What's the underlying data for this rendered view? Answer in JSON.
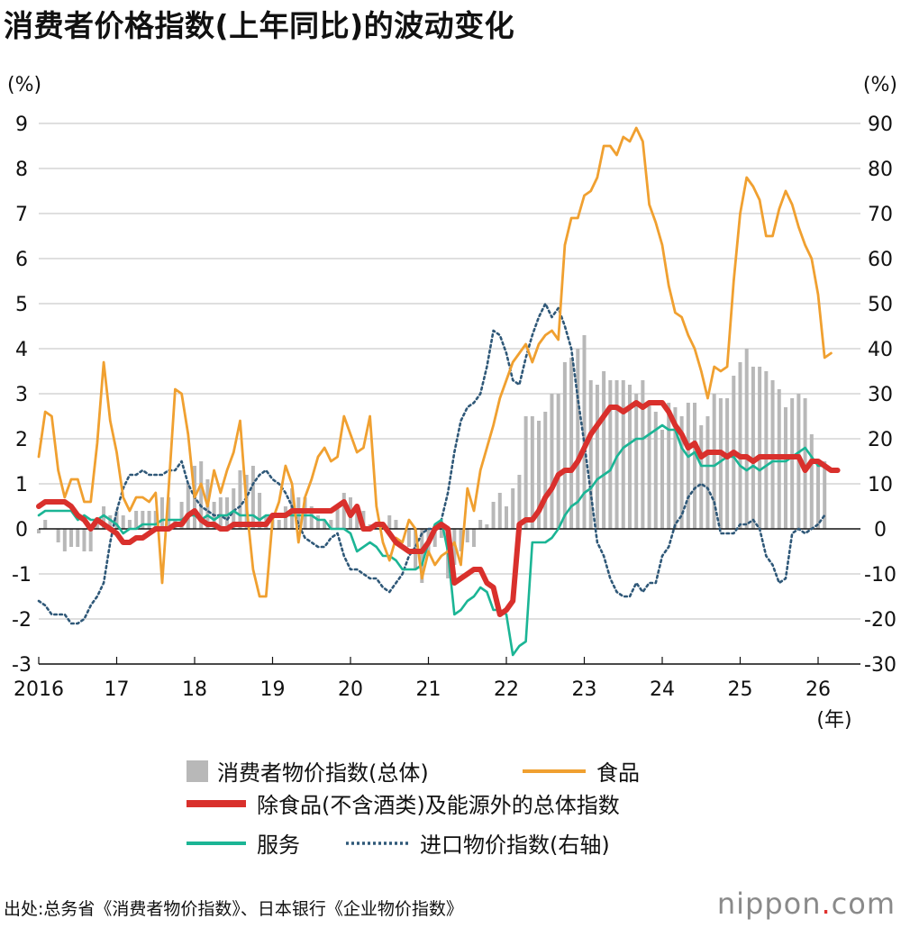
{
  "title": "消费者价格指数(上年同比)的波动变化",
  "axis": {
    "left_unit": "(%)",
    "right_unit": "(%)",
    "x_unit": "(年)",
    "left_ticks": [
      "9",
      "8",
      "7",
      "6",
      "5",
      "4",
      "3",
      "2",
      "1",
      "0",
      "-1",
      "-2",
      "-3"
    ],
    "right_ticks": [
      "90",
      "80",
      "70",
      "60",
      "50",
      "40",
      "30",
      "20",
      "10",
      "0",
      "-10",
      "-20",
      "-30"
    ],
    "x_ticks": [
      "2016",
      "17",
      "18",
      "19",
      "20",
      "21",
      "22",
      "23",
      "24",
      "25",
      "26"
    ]
  },
  "legend": {
    "cpi_total": "消费者物价指数(总体)",
    "food": "食品",
    "core": "除食品(不含酒类)及能源外的总体指数",
    "services": "服务",
    "import": "进口物价指数(右轴)"
  },
  "source": "出处:总务省《消费者物价指数》、日本银行《企业物价指数》",
  "brand": {
    "name": "nippon",
    "dot": ".",
    "tld": "com"
  },
  "colors": {
    "cpi_total": "#b8b8b8",
    "food": "#f0a030",
    "core": "#d9302c",
    "services": "#1bb595",
    "import": "#2f5878",
    "grid": "#cccccc"
  },
  "chart_data": {
    "type": "line",
    "x_start": "2016-01",
    "frequency": "monthly",
    "xlabel": "(年)",
    "ylabel_left": "(%)",
    "ylabel_right": "(%)",
    "ylim_left": [
      -3,
      9
    ],
    "ylim_right": [
      -30,
      90
    ],
    "grid": true,
    "series": [
      {
        "name": "消费者物价指数(总体)",
        "type": "bar",
        "axis": "left",
        "values": [
          -0.1,
          0.2,
          0,
          -0.3,
          -0.5,
          -0.4,
          -0.4,
          -0.5,
          -0.5,
          0.1,
          0.5,
          0.3,
          0.4,
          0.3,
          0.2,
          0.4,
          0.4,
          0.4,
          0.4,
          0.7,
          0.7,
          0.2,
          0.6,
          1.0,
          1.4,
          1.5,
          1.1,
          0.6,
          0.7,
          0.7,
          0.9,
          1.3,
          1.2,
          1.4,
          0.8,
          0.3,
          0.2,
          0.2,
          0.5,
          0.9,
          0.7,
          0.7,
          0.5,
          0.3,
          0.2,
          0.2,
          0.5,
          0.8,
          0.7,
          0.4,
          0.4,
          0.1,
          0.1,
          0.1,
          0.3,
          0.2,
          0,
          -0.4,
          -0.9,
          -1.2,
          -0.6,
          -0.4,
          -0.2,
          -1.1,
          -0.8,
          -0.5,
          -0.3,
          -0.4,
          0.2,
          0.1,
          0.6,
          0.8,
          0.5,
          0.9,
          1.2,
          2.5,
          2.5,
          2.4,
          2.6,
          3.0,
          3.0,
          3.7,
          3.8,
          4.0,
          4.3,
          3.3,
          3.2,
          3.5,
          3.3,
          3.3,
          3.3,
          3.2,
          3.0,
          3.3,
          2.8,
          2.6,
          2.2,
          2.8,
          2.7,
          2.5,
          2.8,
          2.8,
          2.3,
          2.5,
          3.0,
          2.9,
          2.9,
          3.4,
          3.7,
          4.0,
          3.6,
          3.6,
          3.5,
          3.3,
          3.1,
          2.7,
          2.9,
          3.0,
          2.9,
          2.1,
          1.5,
          1.5
        ]
      },
      {
        "name": "食品",
        "type": "line",
        "axis": "left",
        "values": [
          1.6,
          2.6,
          2.5,
          1.3,
          0.7,
          1.1,
          1.1,
          0.6,
          0.6,
          1.9,
          3.7,
          2.4,
          1.7,
          0.7,
          0.4,
          0.7,
          0.7,
          0.6,
          0.8,
          -1.2,
          0.9,
          3.1,
          3.0,
          2.1,
          0.7,
          1.0,
          0.5,
          1.3,
          0.8,
          1.3,
          1.7,
          2.4,
          0.5,
          -0.9,
          -1.5,
          -1.5,
          0.2,
          0.6,
          1.4,
          1.0,
          -0.3,
          0.7,
          1.1,
          1.6,
          1.8,
          1.5,
          1.6,
          2.5,
          2.1,
          1.7,
          1.8,
          2.5,
          0.5,
          -0.3,
          -0.7,
          -0.2,
          -0.3,
          0.2,
          0,
          -1.1,
          -0.5,
          -0.8,
          -0.6,
          -0.5,
          -0.3,
          -0.8,
          0.9,
          0.4,
          1.3,
          1.8,
          2.3,
          2.9,
          3.3,
          3.7,
          3.9,
          4.1,
          3.7,
          4.1,
          4.3,
          4.4,
          4.2,
          6.3,
          6.9,
          6.9,
          7.4,
          7.5,
          7.8,
          8.5,
          8.5,
          8.3,
          8.7,
          8.6,
          8.9,
          8.6,
          7.2,
          6.8,
          6.3,
          5.4,
          4.8,
          4.7,
          4.3,
          4.0,
          3.5,
          2.9,
          3.6,
          3.5,
          3.6,
          5.5,
          7.0,
          7.8,
          7.6,
          7.3,
          6.5,
          6.5,
          7.1,
          7.5,
          7.2,
          6.7,
          6.3,
          6.0,
          5.2,
          3.8,
          3.9
        ]
      },
      {
        "name": "除食品(不含酒类)及能源外的总体指数",
        "type": "line",
        "axis": "left",
        "values": [
          0.5,
          0.6,
          0.6,
          0.6,
          0.6,
          0.5,
          0.3,
          0.2,
          0,
          0.2,
          0.1,
          0,
          -0.1,
          -0.3,
          -0.3,
          -0.2,
          -0.2,
          -0.1,
          0,
          0,
          0,
          0.1,
          0.1,
          0.3,
          0.4,
          0.2,
          0.1,
          0.1,
          0,
          0,
          0.1,
          0.1,
          0.1,
          0.1,
          0.1,
          0.1,
          0.3,
          0.3,
          0.3,
          0.4,
          0.4,
          0.4,
          0.4,
          0.4,
          0.4,
          0.4,
          0.5,
          0.6,
          0.3,
          0.5,
          0,
          0,
          0.1,
          0.1,
          -0.1,
          -0.3,
          -0.4,
          -0.5,
          -0.5,
          -0.5,
          -0.3,
          0,
          0.1,
          0,
          -1.2,
          -1.1,
          -1.0,
          -0.9,
          -0.9,
          -1.2,
          -1.3,
          -1.9,
          -1.8,
          -1.6,
          0.1,
          0.2,
          0.2,
          0.4,
          0.7,
          0.9,
          1.2,
          1.3,
          1.3,
          1.5,
          1.8,
          2.1,
          2.3,
          2.5,
          2.7,
          2.7,
          2.6,
          2.7,
          2.8,
          2.7,
          2.8,
          2.8,
          2.8,
          2.6,
          2.3,
          2.1,
          1.8,
          1.9,
          1.6,
          1.7,
          1.7,
          1.7,
          1.6,
          1.7,
          1.6,
          1.6,
          1.5,
          1.6,
          1.6,
          1.6,
          1.6,
          1.6,
          1.6,
          1.6,
          1.3,
          1.5,
          1.5,
          1.4,
          1.3,
          1.3
        ]
      },
      {
        "name": "服务",
        "type": "line",
        "axis": "left",
        "values": [
          0.3,
          0.4,
          0.4,
          0.4,
          0.4,
          0.4,
          0.2,
          0.3,
          0.2,
          0.2,
          0.3,
          0.2,
          0.1,
          -0.1,
          0,
          0,
          0.1,
          0.1,
          0.1,
          0.2,
          0.2,
          0.2,
          0.2,
          0.3,
          0.3,
          0.2,
          0.3,
          0.2,
          0.3,
          0.3,
          0.4,
          0.3,
          0.3,
          0.3,
          0.2,
          0.3,
          0.3,
          0.3,
          0.3,
          0.3,
          0.3,
          0.3,
          0.3,
          0.2,
          0.2,
          0,
          0,
          0,
          -0.1,
          -0.5,
          -0.4,
          -0.3,
          -0.4,
          -0.6,
          -0.6,
          -0.7,
          -0.9,
          -0.9,
          -0.9,
          -0.8,
          -0.3,
          0.1,
          0.2,
          -0.5,
          -1.9,
          -1.8,
          -1.6,
          -1.5,
          -1.3,
          -1.4,
          -1.8,
          -1.8,
          -1.9,
          -2.8,
          -2.6,
          -2.5,
          -0.3,
          -0.3,
          -0.3,
          -0.2,
          0,
          0.3,
          0.5,
          0.6,
          0.8,
          0.9,
          1.1,
          1.2,
          1.3,
          1.6,
          1.8,
          1.9,
          2.0,
          2.0,
          2.1,
          2.2,
          2.3,
          2.2,
          2.2,
          1.8,
          1.6,
          1.7,
          1.4,
          1.4,
          1.4,
          1.5,
          1.6,
          1.6,
          1.4,
          1.3,
          1.4,
          1.3,
          1.4,
          1.5,
          1.5,
          1.5,
          1.6,
          1.7,
          1.8,
          1.6,
          1.4,
          1.4
        ]
      },
      {
        "name": "进口物价指数(右轴)",
        "type": "line",
        "axis": "right",
        "values": [
          -16,
          -17,
          -19,
          -19,
          -19,
          -21,
          -21,
          -20,
          -17,
          -15,
          -12,
          -3,
          4,
          9,
          12,
          12,
          13,
          12,
          12,
          12,
          13,
          13,
          15,
          10,
          7,
          5,
          4,
          3,
          3,
          2,
          4,
          5,
          7,
          10,
          12,
          13,
          11,
          10,
          8,
          5,
          1,
          -2,
          -3,
          -4,
          -4,
          -2,
          -1,
          -6,
          -9,
          -9,
          -10,
          -11,
          -11,
          -13,
          -14,
          -12,
          -10,
          -6,
          -4,
          -1,
          0,
          0,
          2,
          8,
          17,
          24,
          27,
          28,
          30,
          36,
          44,
          43,
          39,
          33,
          32,
          38,
          43,
          47,
          50,
          47,
          49,
          45,
          40,
          29,
          19,
          8,
          -3,
          -6,
          -11,
          -14,
          -15,
          -15,
          -12,
          -14,
          -12,
          -12,
          -6,
          -4,
          1,
          3,
          7,
          9,
          10,
          9,
          6,
          -1,
          -1,
          -1,
          1,
          1,
          2,
          0,
          -6,
          -8,
          -12,
          -11,
          -1,
          0,
          -1,
          0,
          1,
          3
        ]
      }
    ]
  }
}
